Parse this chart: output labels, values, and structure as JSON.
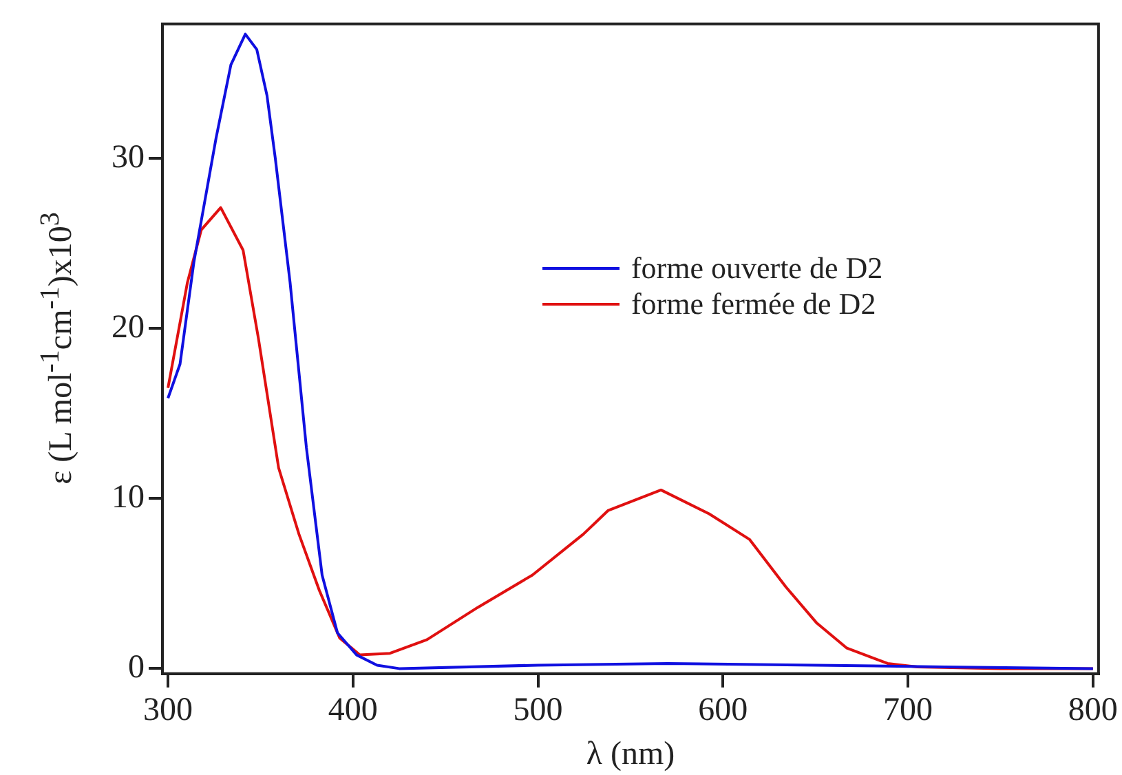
{
  "chart_data": {
    "type": "line",
    "xlabel": "λ (nm)",
    "ylabel": "ε (L mol$^{-1}$cm$^{-1}$)x10$^{3}$",
    "xlim": [
      297,
      803
    ],
    "xticks": [
      300,
      400,
      500,
      600,
      700,
      800
    ],
    "ylim": [
      -0.3,
      37.9
    ],
    "yticks": [
      0,
      10,
      20,
      30
    ],
    "grid": false,
    "legend": "center",
    "marker": "none",
    "line_style": "solid",
    "series": [
      {
        "name": "forme ouverte de D2",
        "color": "#1010e0",
        "x": [
          300,
          306.5,
          314,
          326,
          334,
          341.8,
          348,
          353.5,
          358,
          366,
          374.8,
          383.3,
          391.6,
          402,
          413,
          425,
          500,
          570,
          650,
          720,
          800
        ],
        "values": [
          15.9,
          17.9,
          23.9,
          31.2,
          35.5,
          37.3,
          36.4,
          33.7,
          30,
          22.7,
          13,
          5.5,
          2.1,
          0.8,
          0.2,
          0,
          0.2,
          0.3,
          0.2,
          0.1,
          0
        ]
      },
      {
        "name": "forme fermée de D2",
        "color": "#e01010",
        "x": [
          300,
          310.5,
          318,
          328.5,
          340.6,
          348.9,
          359.8,
          370.8,
          381.8,
          392.8,
          403.7,
          420,
          440,
          467.5,
          497,
          524.5,
          538,
          566.5,
          592.5,
          614.3,
          634,
          650.5,
          667,
          689,
          705,
          750,
          800
        ],
        "values": [
          16.5,
          22.7,
          25.8,
          27.1,
          24.6,
          19.4,
          11.8,
          7.9,
          4.6,
          1.8,
          0.8,
          0.9,
          1.7,
          3.6,
          5.5,
          7.9,
          9.3,
          10.5,
          9.1,
          7.6,
          4.8,
          2.7,
          1.2,
          0.3,
          0.1,
          0,
          0
        ]
      }
    ]
  }
}
